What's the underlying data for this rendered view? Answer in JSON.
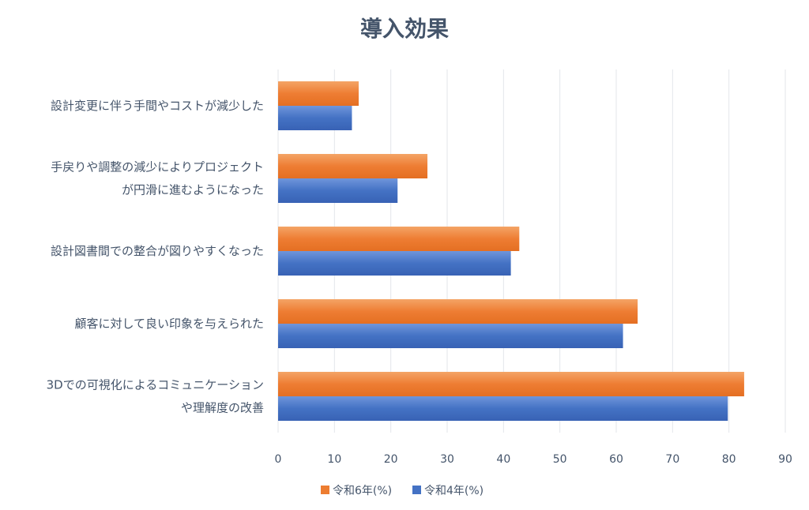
{
  "chart_data": {
    "type": "bar",
    "orientation": "horizontal",
    "title": "導入効果",
    "categories": [
      [
        "設計変更に伴う手間やコストが減少した"
      ],
      [
        "手戻りや調整の減少によりプロジェクト",
        "が円滑に進むようになった"
      ],
      [
        "設計図書間での整合が図りやすくなった"
      ],
      [
        "顧客に対して良い印象を与えられた"
      ],
      [
        "3Dでの可視化によるコミュニケーション",
        "や理解度の改善"
      ]
    ],
    "series": [
      {
        "name": "令和6年(%)",
        "color": "#ed7d31",
        "values": [
          14.3,
          26.5,
          42.8,
          63.8,
          82.7
        ]
      },
      {
        "name": "令和4年(%)",
        "color": "#4472c4",
        "values": [
          13.1,
          21.2,
          41.3,
          61.2,
          79.8
        ]
      }
    ],
    "xlim": [
      0,
      90
    ],
    "xticks": [
      "0",
      "10",
      "20",
      "30",
      "40",
      "50",
      "60",
      "70",
      "80",
      "90"
    ],
    "grid": true,
    "legend": "bottom-center"
  }
}
